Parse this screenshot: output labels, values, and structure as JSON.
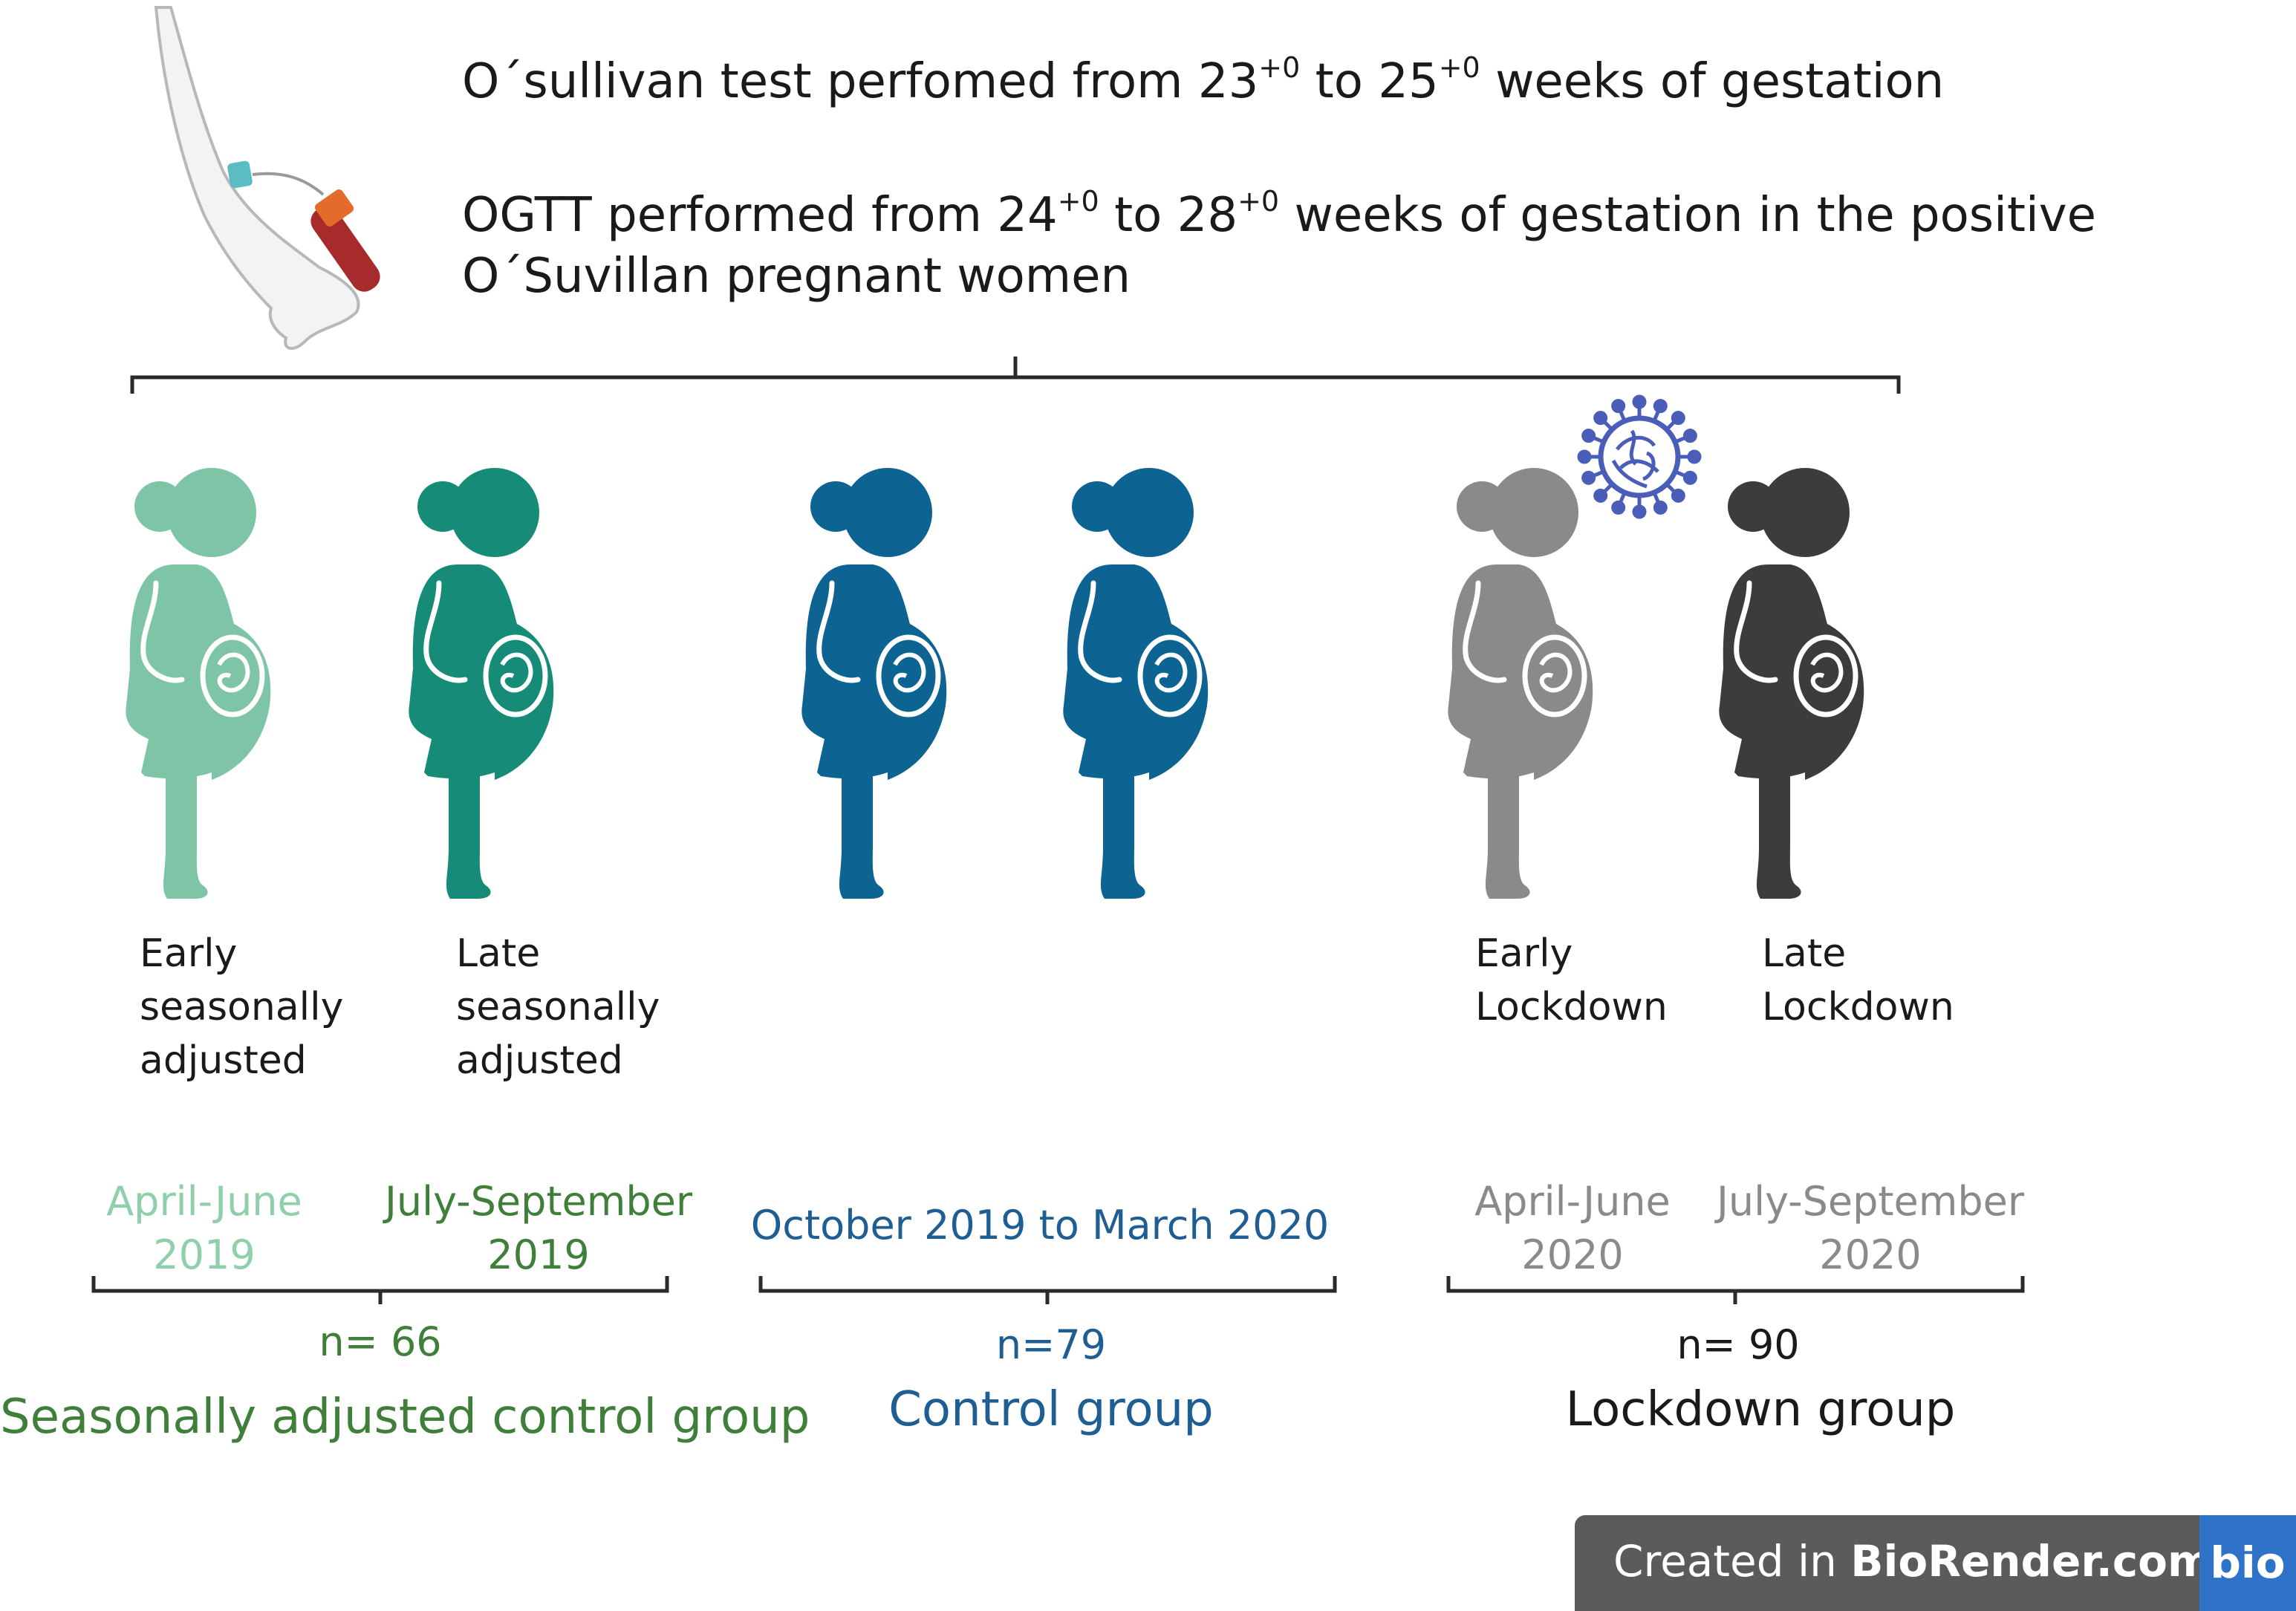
{
  "header": {
    "line1_pre": "O´sullivan test perfomed from 23",
    "line1_sup1": "+0",
    "line1_mid": " to 25",
    "line1_sup2": "+0",
    "line1_post": " weeks of gestation",
    "line2_pre": "OGTT performed from 24",
    "line2_sup1": "+0",
    "line2_mid": " to 28",
    "line2_sup2": "+0",
    "line2_post": " weeks of gestation in the positive",
    "line3": "O´Suvillan pregnant women"
  },
  "figures": [
    {
      "label1": "Early",
      "label2": "seasonally",
      "label3": "adjusted",
      "color": "#7ec4a6"
    },
    {
      "label1": "Late",
      "label2": "seasonally",
      "label3": "adjusted",
      "color": "#168c78"
    },
    {
      "label1": "",
      "label2": "",
      "label3": "",
      "color": "#0d6391"
    },
    {
      "label1": "",
      "label2": "",
      "label3": "",
      "color": "#0d6391"
    },
    {
      "label1": "Early",
      "label2": "Lockdown",
      "label3": "",
      "color": "#8a8a8a"
    },
    {
      "label1": "Late",
      "label2": "Lockdown",
      "label3": "",
      "color": "#3c3c3c"
    }
  ],
  "periods": {
    "early_2019_a": "April-June",
    "early_2019_b": "2019",
    "late_2019_a": "July-September",
    "late_2019_b": "2019",
    "control": "October 2019 to March 2020",
    "early_2020_a": "April-June",
    "early_2020_b": "2020",
    "late_2020_a": "July-September",
    "late_2020_b": "2020"
  },
  "groups": {
    "seasonal_n": "n= 66",
    "seasonal_name": "Seasonally adjusted control group",
    "control_n": "n=79",
    "control_name": "Control group",
    "lockdown_n": "n= 90",
    "lockdown_name": "Lockdown group"
  },
  "colors": {
    "seasonal_light": "#8fcfa9",
    "seasonal_dark": "#3f7f3a",
    "control": "#1f5e93",
    "lockdown_light": "#8a8a8a",
    "lockdown_dark": "#1a1a1a",
    "virus": "#4a5db8"
  },
  "badge": {
    "prefix": "Created in ",
    "brand": "BioRender.com",
    "logo": "bio"
  },
  "icons": [
    "arm-blood-draw-icon",
    "pregnant-woman-icon",
    "virus-icon"
  ]
}
